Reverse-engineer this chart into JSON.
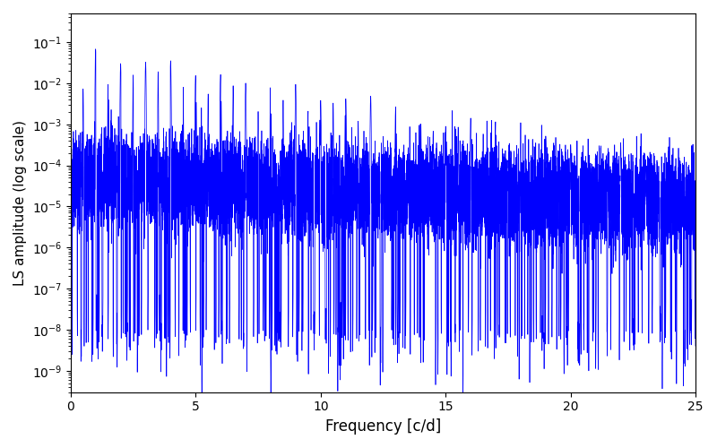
{
  "title": "",
  "xlabel": "Frequency [c/d]",
  "ylabel": "LS amplitude (log scale)",
  "xlim": [
    0,
    25
  ],
  "ylim_low": 3e-10,
  "ylim_high": 0.5,
  "line_color": "#0000ff",
  "line_width": 0.5,
  "figsize": [
    8.0,
    5.0
  ],
  "dpi": 100,
  "freq_max": 25.0,
  "n_points": 20000,
  "seed": 12345
}
